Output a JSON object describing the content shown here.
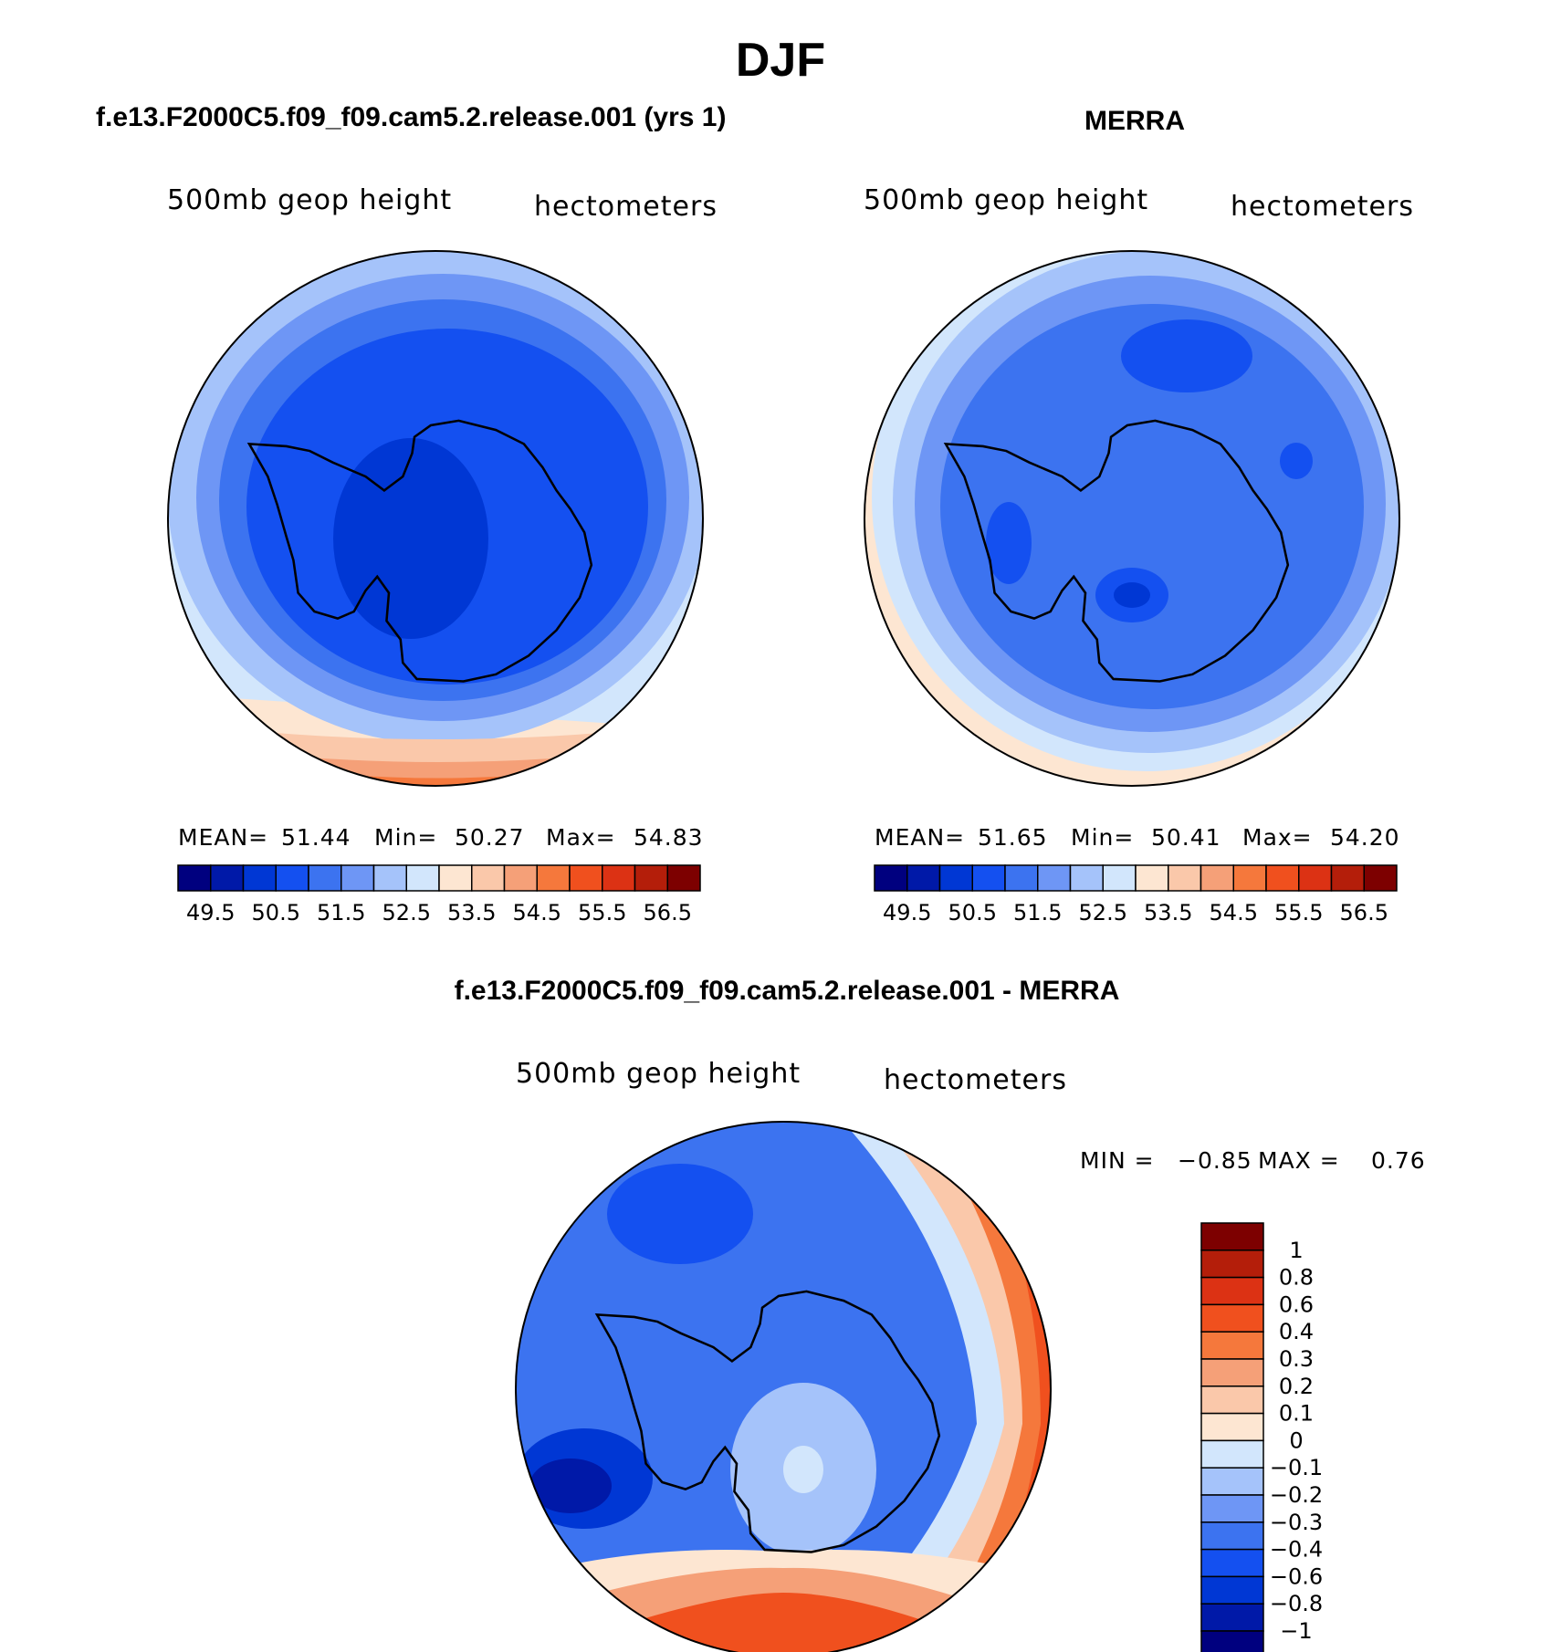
{
  "page": {
    "title": "DJF"
  },
  "panels": [
    {
      "id": "model",
      "case_title": "f.e13.F2000C5.f09_f09.cam5.2.release.001 (yrs 1)",
      "left_label": "500mb geop height",
      "right_label": "hectometers",
      "stats": {
        "mean_label": "MEAN=",
        "mean": "51.44",
        "min_label": "Min=",
        "min": "50.27",
        "max_label": "Max=",
        "max": "54.83"
      }
    },
    {
      "id": "obs",
      "case_title": "MERRA",
      "left_label": "500mb geop height",
      "right_label": "hectometers",
      "stats": {
        "mean_label": "MEAN=",
        "mean": "51.65",
        "min_label": "Min=",
        "min": "50.41",
        "max_label": "Max=",
        "max": "54.20"
      }
    },
    {
      "id": "diff",
      "case_title": "f.e13.F2000C5.f09_f09.cam5.2.release.001 - MERRA",
      "left_label": "500mb geop height",
      "right_label": "hectometers",
      "stats": {
        "min_label": "MIN =",
        "min": "−0.85",
        "max_label": "MAX =",
        "max": "0.76"
      }
    }
  ],
  "colorbar_fields": {
    "colors": [
      "#00007f",
      "#0019a8",
      "#0037d4",
      "#1450f0",
      "#3c73f0",
      "#6e96f5",
      "#a5c3fa",
      "#d2e6fc",
      "#fde6d2",
      "#fac8aa",
      "#f5a078",
      "#f5783c",
      "#f0501e",
      "#dc3214",
      "#b41e0a",
      "#7d0000"
    ],
    "tick_labels": [
      "49.5",
      "50.5",
      "51.5",
      "52.5",
      "53.5",
      "54.5",
      "55.5",
      "56.5"
    ]
  },
  "colorbar_diff": {
    "colors": [
      "#7d0000",
      "#b41e0a",
      "#dc3214",
      "#f0501e",
      "#f5783c",
      "#f5a078",
      "#fac8aa",
      "#fde6d2",
      "#d2e6fc",
      "#a5c3fa",
      "#6e96f5",
      "#3c73f0",
      "#1450f0",
      "#0037d4",
      "#0019a8",
      "#00007f"
    ],
    "tick_labels": [
      "1",
      "0.8",
      "0.6",
      "0.4",
      "0.3",
      "0.2",
      "0.1",
      "0",
      "−0.1",
      "−0.2",
      "−0.3",
      "−0.4",
      "−0.6",
      "−0.8",
      "−1"
    ]
  },
  "map_colors": {
    "coast": "#000000",
    "frame": "#000000"
  }
}
